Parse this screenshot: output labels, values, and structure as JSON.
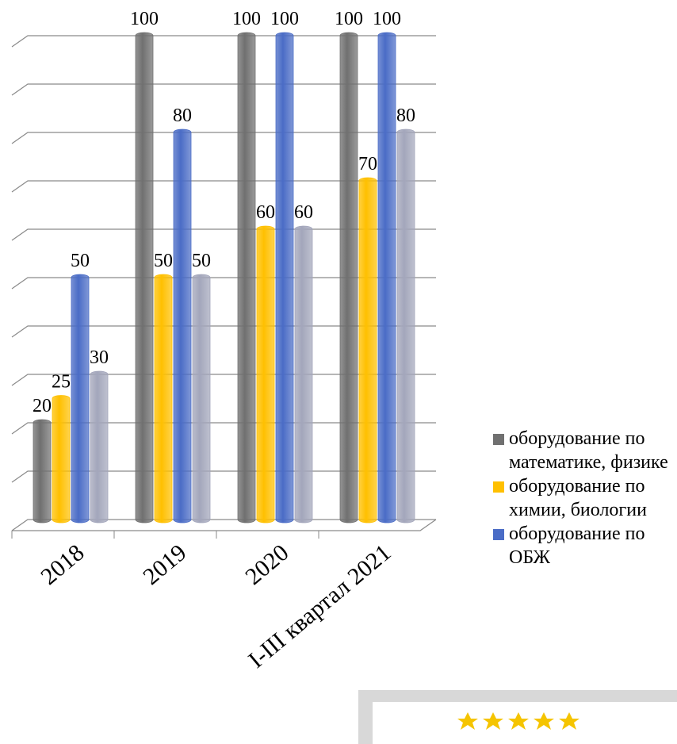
{
  "chart_data": {
    "type": "bar3d",
    "categories": [
      "2018",
      "2019",
      "2020",
      "I-III квартал 2021"
    ],
    "series": [
      {
        "name": "оборудование по математике, физике",
        "color": "#707070",
        "values": [
          20,
          100,
          100,
          100
        ]
      },
      {
        "name": "оборудование по химии, биологии",
        "color": "#ffc000",
        "values": [
          25,
          50,
          60,
          70
        ]
      },
      {
        "name": "оборудование по ОБЖ",
        "color": "#4a6cc6",
        "values": [
          50,
          80,
          100,
          100
        ]
      },
      {
        "color": "#a3a6bb",
        "values": [
          30,
          50,
          60,
          80
        ]
      }
    ],
    "ylim": [
      0,
      100
    ],
    "yticks": [
      0,
      10,
      20,
      30,
      40,
      50,
      60,
      70,
      80,
      90,
      100
    ],
    "grid": true,
    "legend": "right"
  }
}
